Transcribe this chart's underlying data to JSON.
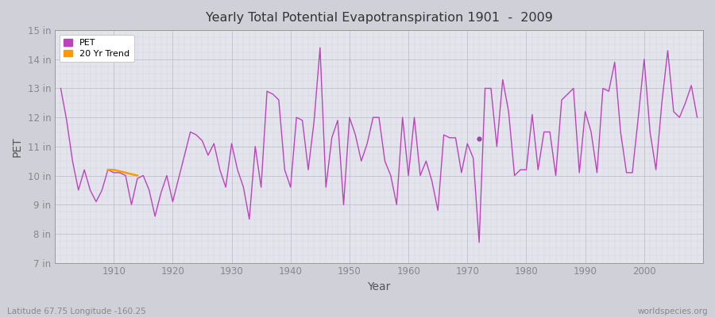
{
  "title": "Yearly Total Potential Evapotranspiration 1901  -  2009",
  "xlabel": "Year",
  "ylabel": "PET",
  "subtitle_left": "Latitude 67.75 Longitude -160.25",
  "subtitle_right": "worldspecies.org",
  "ylim": [
    7,
    15
  ],
  "yticks": [
    7,
    8,
    9,
    10,
    11,
    12,
    13,
    14,
    15
  ],
  "ytick_labels": [
    "7 in",
    "8 in",
    "9 in",
    "10 in",
    "11 in",
    "12 in",
    "13 in",
    "14 in",
    "15 in"
  ],
  "xlim": [
    1900,
    2010
  ],
  "xticks": [
    1910,
    1920,
    1930,
    1940,
    1950,
    1960,
    1970,
    1980,
    1990,
    2000
  ],
  "pet_color": "#bb44bb",
  "trend_color": "#ff9900",
  "fig_bg_color": "#d0d0d8",
  "plot_bg_color": "#e4e4ec",
  "legend_labels": [
    "PET",
    "20 Yr Trend"
  ],
  "pet_years": [
    1901,
    1902,
    1903,
    1904,
    1905,
    1906,
    1907,
    1908,
    1909,
    1910,
    1911,
    1912,
    1913,
    1914,
    1915,
    1916,
    1917,
    1918,
    1919,
    1920,
    1921,
    1922,
    1923,
    1924,
    1925,
    1926,
    1927,
    1928,
    1929,
    1930,
    1931,
    1932,
    1933,
    1934,
    1935,
    1936,
    1937,
    1938,
    1939,
    1940,
    1941,
    1942,
    1943,
    1944,
    1945,
    1946,
    1947,
    1948,
    1949,
    1950,
    1951,
    1952,
    1953,
    1954,
    1955,
    1956,
    1957,
    1958,
    1959,
    1960,
    1961,
    1962,
    1963,
    1964,
    1965,
    1966,
    1967,
    1968,
    1969,
    1970,
    1971,
    1972,
    1973,
    1974,
    1975,
    1976,
    1977,
    1978,
    1979,
    1980,
    1981,
    1982,
    1983,
    1984,
    1985,
    1986,
    1987,
    1988,
    1989,
    1990,
    1991,
    1992,
    1993,
    1994,
    1995,
    1996,
    1997,
    1998,
    1999,
    2000,
    2001,
    2002,
    2003,
    2004,
    2005,
    2006,
    2007,
    2008,
    2009
  ],
  "pet_values": [
    13.0,
    11.9,
    10.5,
    9.5,
    10.2,
    9.5,
    9.1,
    9.5,
    10.2,
    10.1,
    10.1,
    10.0,
    9.0,
    9.9,
    10.0,
    9.5,
    8.6,
    9.4,
    10.0,
    9.1,
    9.9,
    10.7,
    11.5,
    11.4,
    11.2,
    10.7,
    11.1,
    10.2,
    9.6,
    11.1,
    10.2,
    9.6,
    8.5,
    11.0,
    9.6,
    12.9,
    12.8,
    12.6,
    10.2,
    9.6,
    12.0,
    11.9,
    10.2,
    11.9,
    14.4,
    9.6,
    11.3,
    11.9,
    9.0,
    12.0,
    11.4,
    10.5,
    11.1,
    12.0,
    12.0,
    10.5,
    10.0,
    9.0,
    12.0,
    10.0,
    12.0,
    10.0,
    10.5,
    9.8,
    8.8,
    11.4,
    11.3,
    11.3,
    10.1,
    11.1,
    10.6,
    7.7,
    13.0,
    13.0,
    11.0,
    13.3,
    12.2,
    10.0,
    10.2,
    10.2,
    12.1,
    10.2,
    11.5,
    11.5,
    10.0,
    12.6,
    12.8,
    13.0,
    10.1,
    12.2,
    11.5,
    10.1,
    13.0,
    12.9,
    13.9,
    11.5,
    10.1,
    10.1,
    12.0,
    14.0,
    11.5,
    10.2,
    12.5,
    14.3,
    12.2,
    12.0,
    12.5,
    13.1,
    12.0
  ],
  "trend_years": [
    1909,
    1910,
    1911,
    1912,
    1913,
    1914
  ],
  "trend_values": [
    10.2,
    10.2,
    10.15,
    10.1,
    10.05,
    10.0
  ],
  "marker_year": 1972,
  "marker_value": 11.28,
  "minor_xticks_step": 1,
  "minor_yticks_step": 0.25
}
